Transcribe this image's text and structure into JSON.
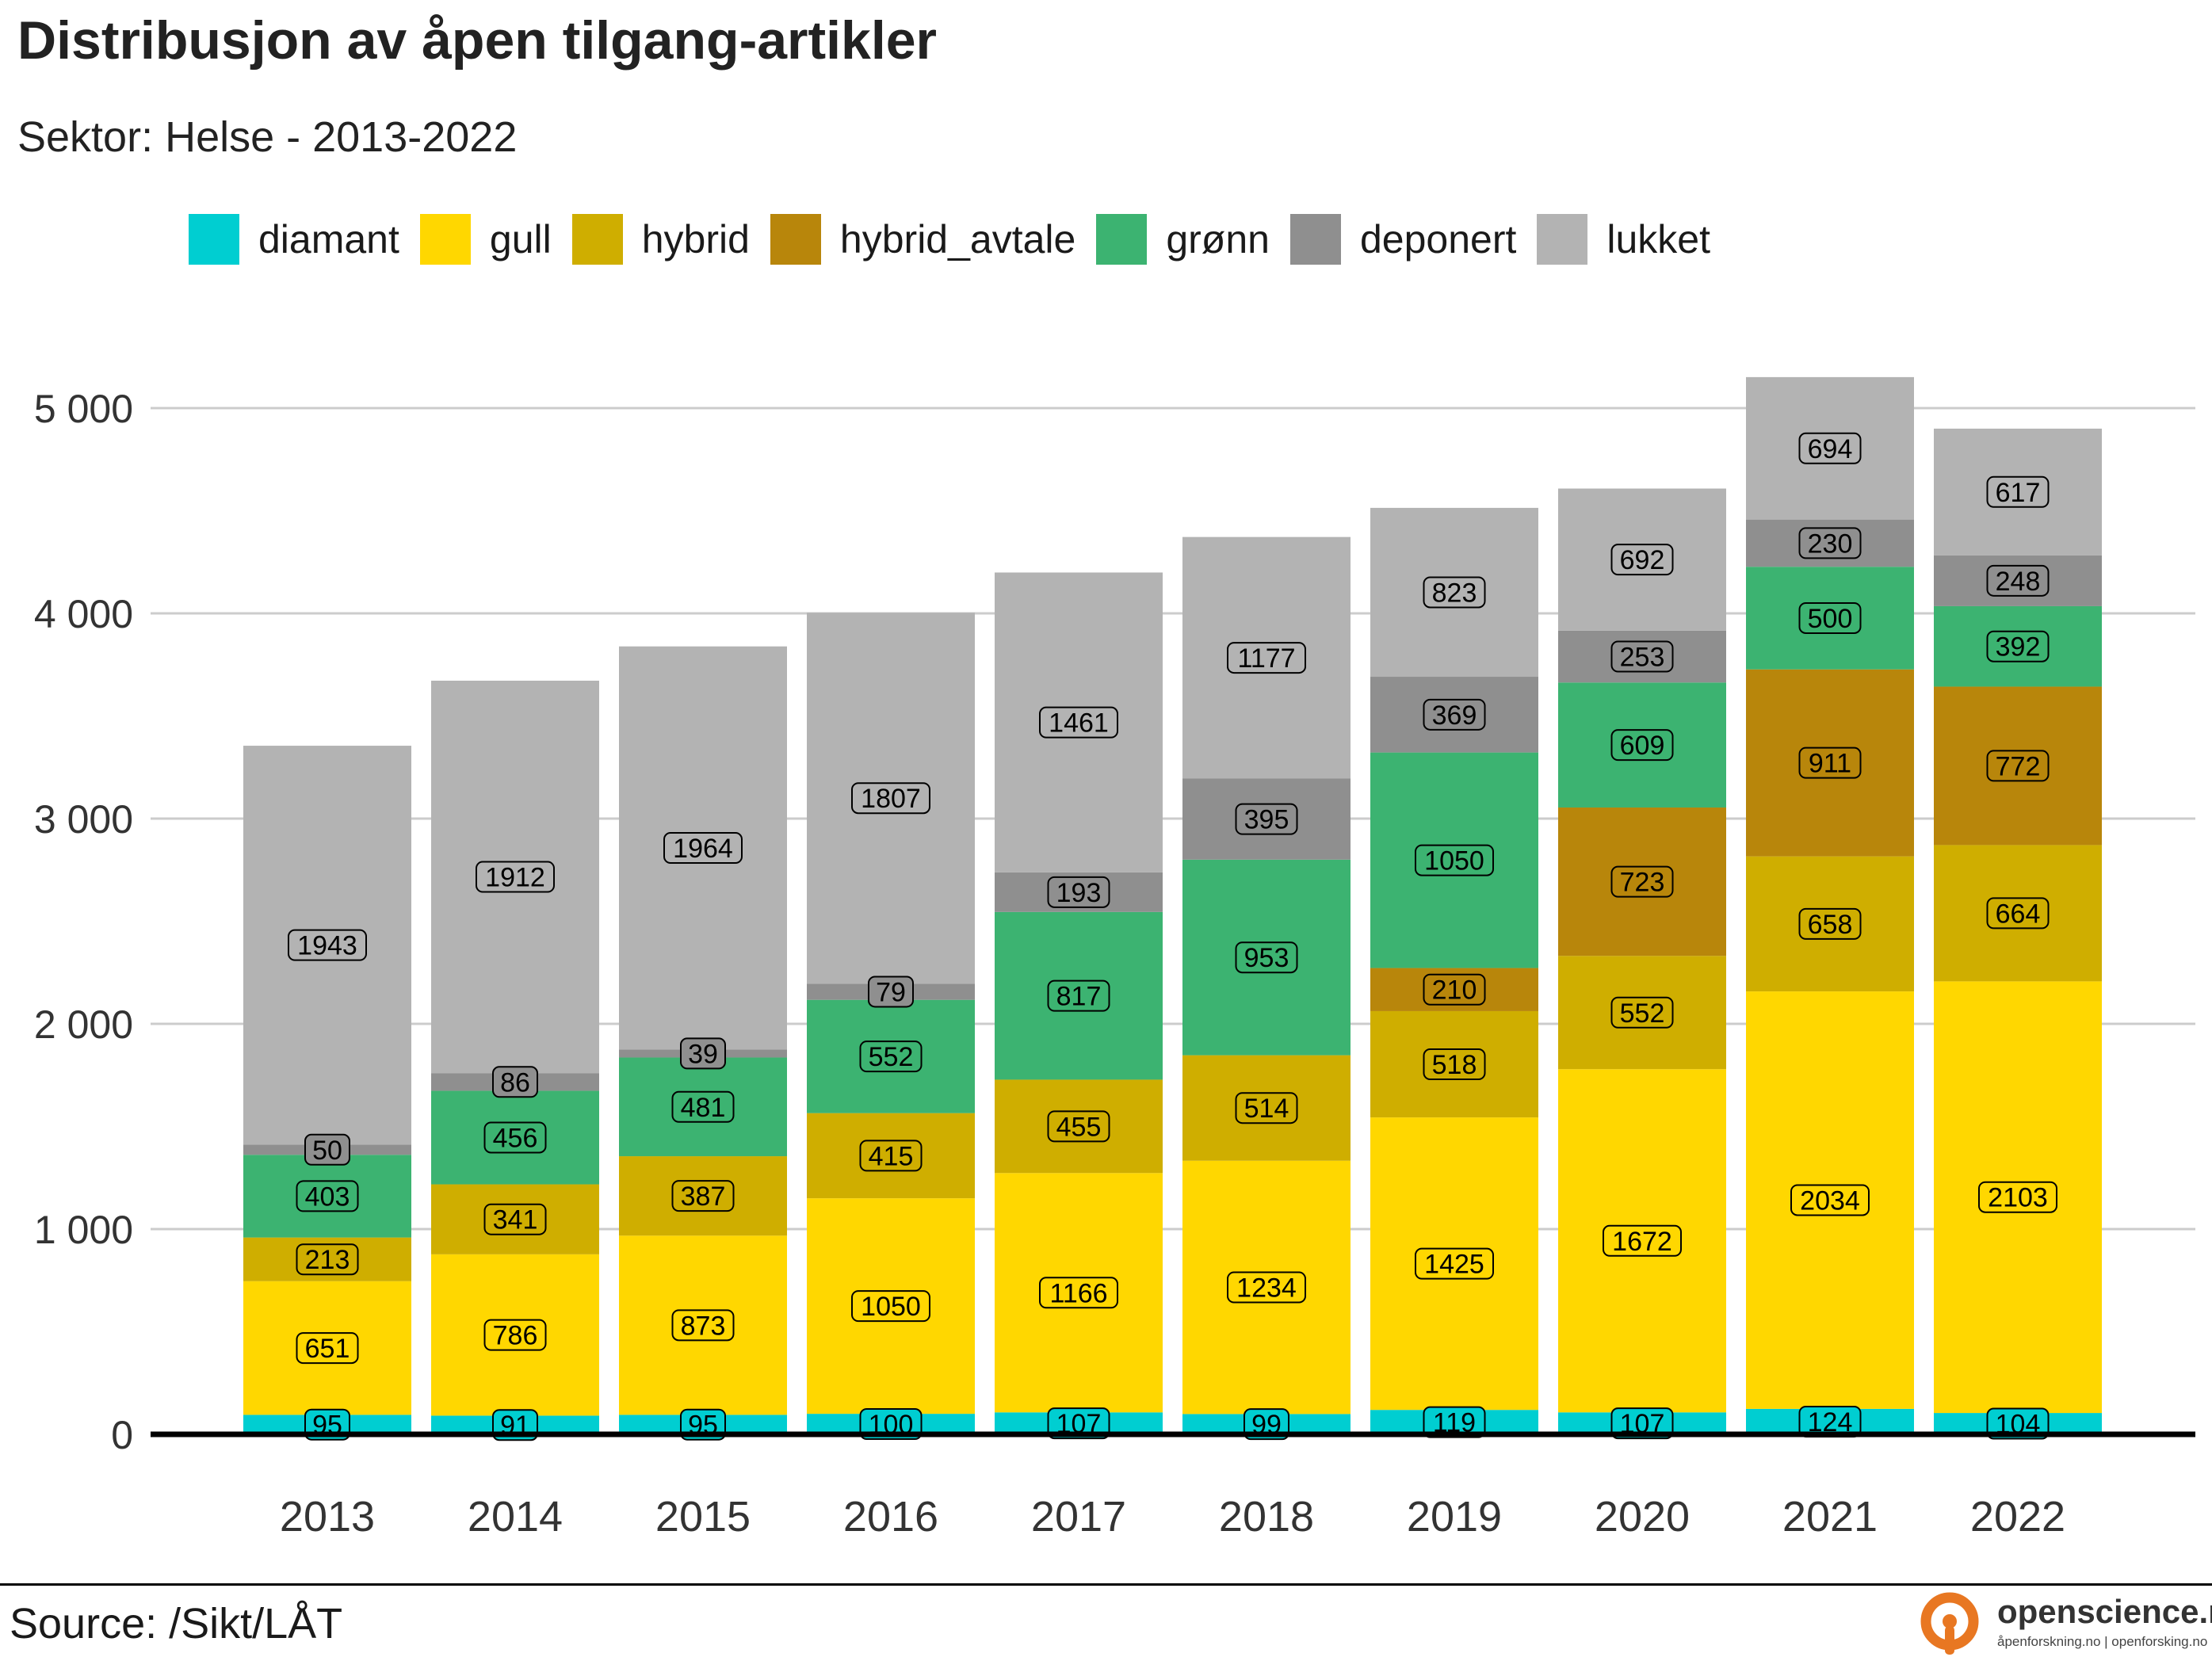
{
  "header": {
    "title": "Distribusjon av åpen tilgang-artikler",
    "subtitle": "Sektor: Helse - 2013-2022"
  },
  "footer": {
    "source": "Source: /Sikt/LÅT",
    "brand_name": "openscience.no",
    "brand_tagline": "åpenforskning.no | openforsking.no"
  },
  "chart_data": {
    "type": "bar",
    "stacked": true,
    "title": "Distribusjon av åpen tilgang-artikler",
    "subtitle": "Sektor: Helse - 2013-2022",
    "xlabel": "",
    "ylabel": "",
    "ylim": [
      0,
      5200
    ],
    "yticks": [
      0,
      1000,
      2000,
      3000,
      4000,
      5000
    ],
    "ytick_labels": [
      "0",
      "1 000",
      "2 000",
      "3 000",
      "4 000",
      "5 000"
    ],
    "grid": true,
    "legend_position": "top",
    "categories": [
      "2013",
      "2014",
      "2015",
      "2016",
      "2017",
      "2018",
      "2019",
      "2020",
      "2021",
      "2022"
    ],
    "series": [
      {
        "name": "diamant",
        "color": "#00CED1",
        "values": [
          95,
          91,
          95,
          100,
          107,
          99,
          119,
          107,
          124,
          104
        ]
      },
      {
        "name": "gull",
        "color": "#FFD700",
        "values": [
          651,
          786,
          873,
          1050,
          1166,
          1234,
          1425,
          1672,
          2034,
          2103
        ]
      },
      {
        "name": "hybrid",
        "color": "#CFAE00",
        "values": [
          213,
          341,
          387,
          415,
          455,
          514,
          518,
          552,
          658,
          664
        ]
      },
      {
        "name": "hybrid_avtale",
        "color": "#B8860B",
        "values": [
          0,
          0,
          0,
          0,
          0,
          0,
          210,
          723,
          911,
          772
        ]
      },
      {
        "name": "grønn",
        "color": "#3CB371",
        "values": [
          403,
          456,
          481,
          552,
          817,
          953,
          1050,
          609,
          500,
          392
        ]
      },
      {
        "name": "deponert",
        "color": "#8F8F8F",
        "values": [
          50,
          86,
          39,
          79,
          193,
          395,
          369,
          253,
          230,
          248
        ]
      },
      {
        "name": "lukket",
        "color": "#B3B3B3",
        "values": [
          1943,
          1912,
          1964,
          1807,
          1461,
          1177,
          823,
          692,
          694,
          617
        ]
      }
    ]
  }
}
